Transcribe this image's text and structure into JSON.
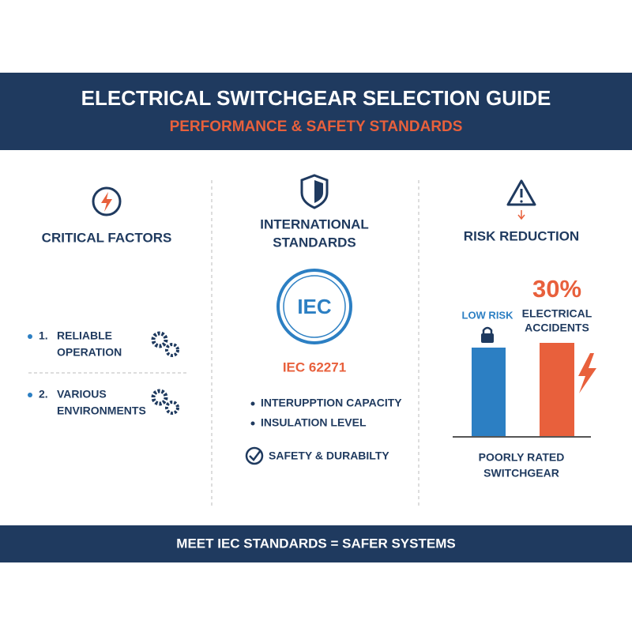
{
  "header": {
    "title": "ELECTRICAL SWITCHGEAR SELECTION GUIDE",
    "subtitle": "PERFORMANCE & SAFETY STANDARDS"
  },
  "columns": [
    {
      "title": [
        "CRITICAL FACTORS"
      ],
      "items": [
        {
          "number": "1.",
          "lines": [
            "RELIABLE",
            "OPERATION"
          ]
        },
        {
          "number": "2.",
          "lines": [
            "VARIOUS",
            "ENVIRONMENTS"
          ]
        }
      ]
    },
    {
      "title": [
        "INTERNATIONAL",
        "STANDARDS"
      ],
      "badge": "IEC",
      "standard": "IEC 62271",
      "bullets": [
        "INTERUPPTION CAPACITY",
        "INSULATION LEVEL"
      ],
      "check": "SAFETY & DURABILTY"
    },
    {
      "title": [
        "RISK REDUCTION"
      ],
      "low_label": "LOW RISK",
      "stat": "30%",
      "stat_label": [
        "ELECTRICAL",
        "ACCIDENTS"
      ],
      "caption": [
        "POORLY RATED",
        "SWITCHGEAR"
      ]
    }
  ],
  "footer": "MEET IEC STANDARDS = SAFER SYSTEMS"
}
